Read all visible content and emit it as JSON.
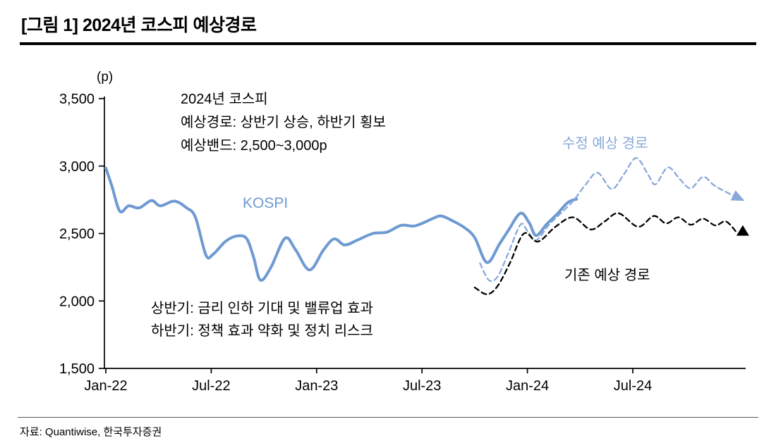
{
  "title": "[그림 1] 2024년 코스피 예상경로",
  "source": "자료: Quantiwise, 한국투자증권",
  "chart_data": {
    "type": "line",
    "title": "2024년 코스피 예상경로",
    "ylabel": "(p)",
    "ylim": [
      1500,
      3500
    ],
    "x_unit": "months since Jan-2022",
    "x_range": [
      0,
      36.4
    ],
    "grid": false,
    "legend_position": "inline-annotations",
    "yticks": [
      {
        "v": 1500,
        "label": "1,500"
      },
      {
        "v": 2000,
        "label": "2,000"
      },
      {
        "v": 2500,
        "label": "2,500"
      },
      {
        "v": 3000,
        "label": "3,000"
      },
      {
        "v": 3500,
        "label": "3,500"
      }
    ],
    "xticks": [
      {
        "m": 0,
        "label": "Jan-22"
      },
      {
        "m": 6,
        "label": "Jul-22"
      },
      {
        "m": 12,
        "label": "Jan-23"
      },
      {
        "m": 18,
        "label": "Jul-23"
      },
      {
        "m": 24,
        "label": "Jan-24"
      },
      {
        "m": 30,
        "label": "Jul-24"
      }
    ],
    "annotations": {
      "forecast_line1": "2024년 코스피",
      "forecast_line2": "예상경로: 상반기 상승, 하반기 횡보",
      "forecast_line3": "예상밴드: 2,500~3,000p",
      "kospi_label": "KOSPI",
      "revised_label": "수정 예상 경로",
      "original_label": "기존 예상 경로",
      "half1": "상반기: 금리 인하 기대 및 밸류업 효과",
      "half2": "하반기: 정책 효과 약화 및 정치 리스크"
    },
    "series": [
      {
        "name": "KOSPI",
        "style": "solid",
        "color": "#6e9ad2",
        "width": 4,
        "marker": "none",
        "points": [
          [
            0,
            2985
          ],
          [
            0.35,
            2850
          ],
          [
            0.8,
            2665
          ],
          [
            1.3,
            2705
          ],
          [
            1.9,
            2690
          ],
          [
            2.6,
            2745
          ],
          [
            3.1,
            2705
          ],
          [
            3.9,
            2740
          ],
          [
            4.6,
            2690
          ],
          [
            5.1,
            2620
          ],
          [
            5.7,
            2340
          ],
          [
            6.1,
            2345
          ],
          [
            6.8,
            2440
          ],
          [
            7.4,
            2480
          ],
          [
            8.0,
            2465
          ],
          [
            8.4,
            2330
          ],
          [
            8.8,
            2155
          ],
          [
            9.4,
            2250
          ],
          [
            10.2,
            2465
          ],
          [
            10.8,
            2380
          ],
          [
            11.6,
            2230
          ],
          [
            12.4,
            2380
          ],
          [
            13.0,
            2460
          ],
          [
            13.6,
            2415
          ],
          [
            14.3,
            2450
          ],
          [
            15.2,
            2500
          ],
          [
            16.0,
            2510
          ],
          [
            16.8,
            2560
          ],
          [
            17.5,
            2555
          ],
          [
            18.0,
            2575
          ],
          [
            18.6,
            2610
          ],
          [
            19.1,
            2630
          ],
          [
            19.8,
            2590
          ],
          [
            20.4,
            2545
          ],
          [
            21.0,
            2470
          ],
          [
            21.7,
            2285
          ],
          [
            22.4,
            2420
          ],
          [
            22.9,
            2520
          ],
          [
            23.6,
            2650
          ],
          [
            24.1,
            2580
          ],
          [
            24.5,
            2485
          ],
          [
            25.1,
            2570
          ],
          [
            25.7,
            2645
          ],
          [
            26.3,
            2730
          ],
          [
            26.8,
            2755
          ]
        ]
      },
      {
        "name": "수정 예상 경로",
        "style": "dashed",
        "color": "#88a9da",
        "width": 2.3,
        "marker": "arrowhead",
        "points": [
          [
            21.3,
            2280
          ],
          [
            21.8,
            2155
          ],
          [
            22.3,
            2180
          ],
          [
            22.9,
            2350
          ],
          [
            23.6,
            2565
          ],
          [
            24.0,
            2520
          ],
          [
            24.5,
            2450
          ],
          [
            25.2,
            2560
          ],
          [
            25.9,
            2650
          ],
          [
            26.6,
            2740
          ],
          [
            27.3,
            2860
          ],
          [
            28.0,
            2950
          ],
          [
            28.8,
            2830
          ],
          [
            29.5,
            2940
          ],
          [
            30.2,
            3060
          ],
          [
            30.9,
            2930
          ],
          [
            31.3,
            2865
          ],
          [
            32.0,
            2990
          ],
          [
            32.7,
            2900
          ],
          [
            33.3,
            2835
          ],
          [
            34.0,
            2920
          ],
          [
            34.6,
            2860
          ],
          [
            35.2,
            2815
          ],
          [
            36.0,
            2765
          ]
        ]
      },
      {
        "name": "기존 예상 경로",
        "style": "dashed",
        "color": "#000000",
        "width": 2.3,
        "marker": "triangle",
        "points": [
          [
            21.0,
            2100
          ],
          [
            21.7,
            2050
          ],
          [
            22.3,
            2110
          ],
          [
            23.0,
            2280
          ],
          [
            23.8,
            2500
          ],
          [
            24.6,
            2440
          ],
          [
            25.6,
            2550
          ],
          [
            26.6,
            2620
          ],
          [
            27.6,
            2530
          ],
          [
            28.4,
            2590
          ],
          [
            29.2,
            2650
          ],
          [
            30.3,
            2550
          ],
          [
            31.2,
            2630
          ],
          [
            31.9,
            2575
          ],
          [
            32.6,
            2620
          ],
          [
            33.3,
            2565
          ],
          [
            34.0,
            2610
          ],
          [
            34.7,
            2560
          ],
          [
            35.3,
            2590
          ],
          [
            35.9,
            2510
          ]
        ]
      }
    ]
  }
}
